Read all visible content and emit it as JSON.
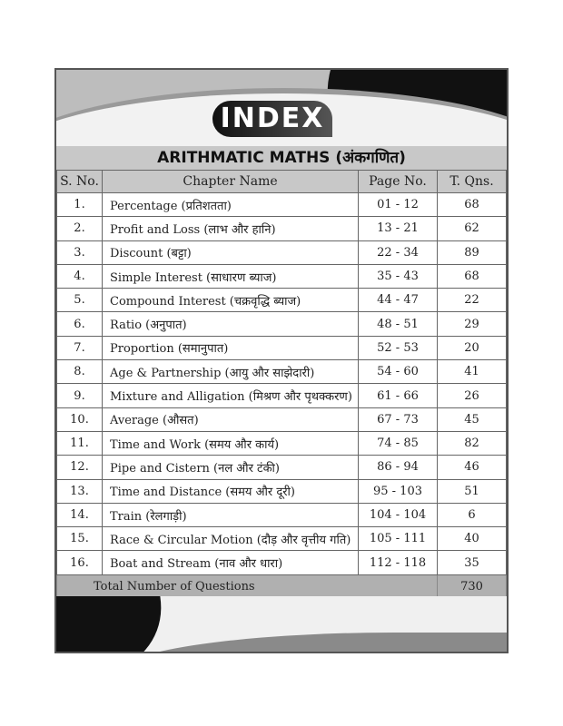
{
  "header": {
    "logo_text": "INDEX",
    "title": "ARITHMATIC MATHS (अंकगणित)"
  },
  "columns": [
    "S. No.",
    "Chapter Name",
    "Page No.",
    "T. Qns."
  ],
  "rows": [
    {
      "sno": "1.",
      "name": "Percentage (प्रतिशतता)",
      "pages": "01  -  12",
      "qns": "68"
    },
    {
      "sno": "2.",
      "name": "Profit and Loss (लाभ और हानि)",
      "pages": "13  -  21",
      "qns": "62"
    },
    {
      "sno": "3.",
      "name": "Discount (बट्टा)",
      "pages": "22  -  34",
      "qns": "89"
    },
    {
      "sno": "4.",
      "name": "Simple Interest (साधारण ब्याज)",
      "pages": "35  -  43",
      "qns": "68"
    },
    {
      "sno": "5.",
      "name": "Compound Interest (चक्रवृद्धि ब्याज)",
      "pages": "44  -  47",
      "qns": "22"
    },
    {
      "sno": "6.",
      "name": "Ratio (अनुपात)",
      "pages": "48  -  51",
      "qns": "29"
    },
    {
      "sno": "7.",
      "name": "Proportion (समानुपात)",
      "pages": "52  -  53",
      "qns": "20"
    },
    {
      "sno": "8.",
      "name": "Age & Partnership (आयु और साझेदारी)",
      "pages": "54  -  60",
      "qns": "41"
    },
    {
      "sno": "9.",
      "name": "Mixture and Alligation (मिश्रण और पृथक्करण)",
      "pages": "61  -  66",
      "qns": "26"
    },
    {
      "sno": "10.",
      "name": "Average (औसत)",
      "pages": "67  -  73",
      "qns": "45"
    },
    {
      "sno": "11.",
      "name": "Time and Work (समय और कार्य)",
      "pages": "74  -  85",
      "qns": "82"
    },
    {
      "sno": "12.",
      "name": "Pipe and Cistern (नल और टंकी)",
      "pages": "86  -  94",
      "qns": "46"
    },
    {
      "sno": "13.",
      "name": "Time and Distance (समय और दूरी)",
      "pages": "95  -  103",
      "qns": "51"
    },
    {
      "sno": "14.",
      "name": "Train (रेलगाड़ी)",
      "pages": "104  -  104",
      "qns": "6"
    },
    {
      "sno": "15.",
      "name": "Race & Circular Motion (दौड़ और वृत्तीय गति)",
      "pages": "105  -  111",
      "qns": "40"
    },
    {
      "sno": "16.",
      "name": "Boat and Stream (नाव और धारा)",
      "pages": "112  -  118",
      "qns": "35"
    }
  ],
  "total": {
    "label": "Total Number of Questions",
    "value": "730"
  }
}
